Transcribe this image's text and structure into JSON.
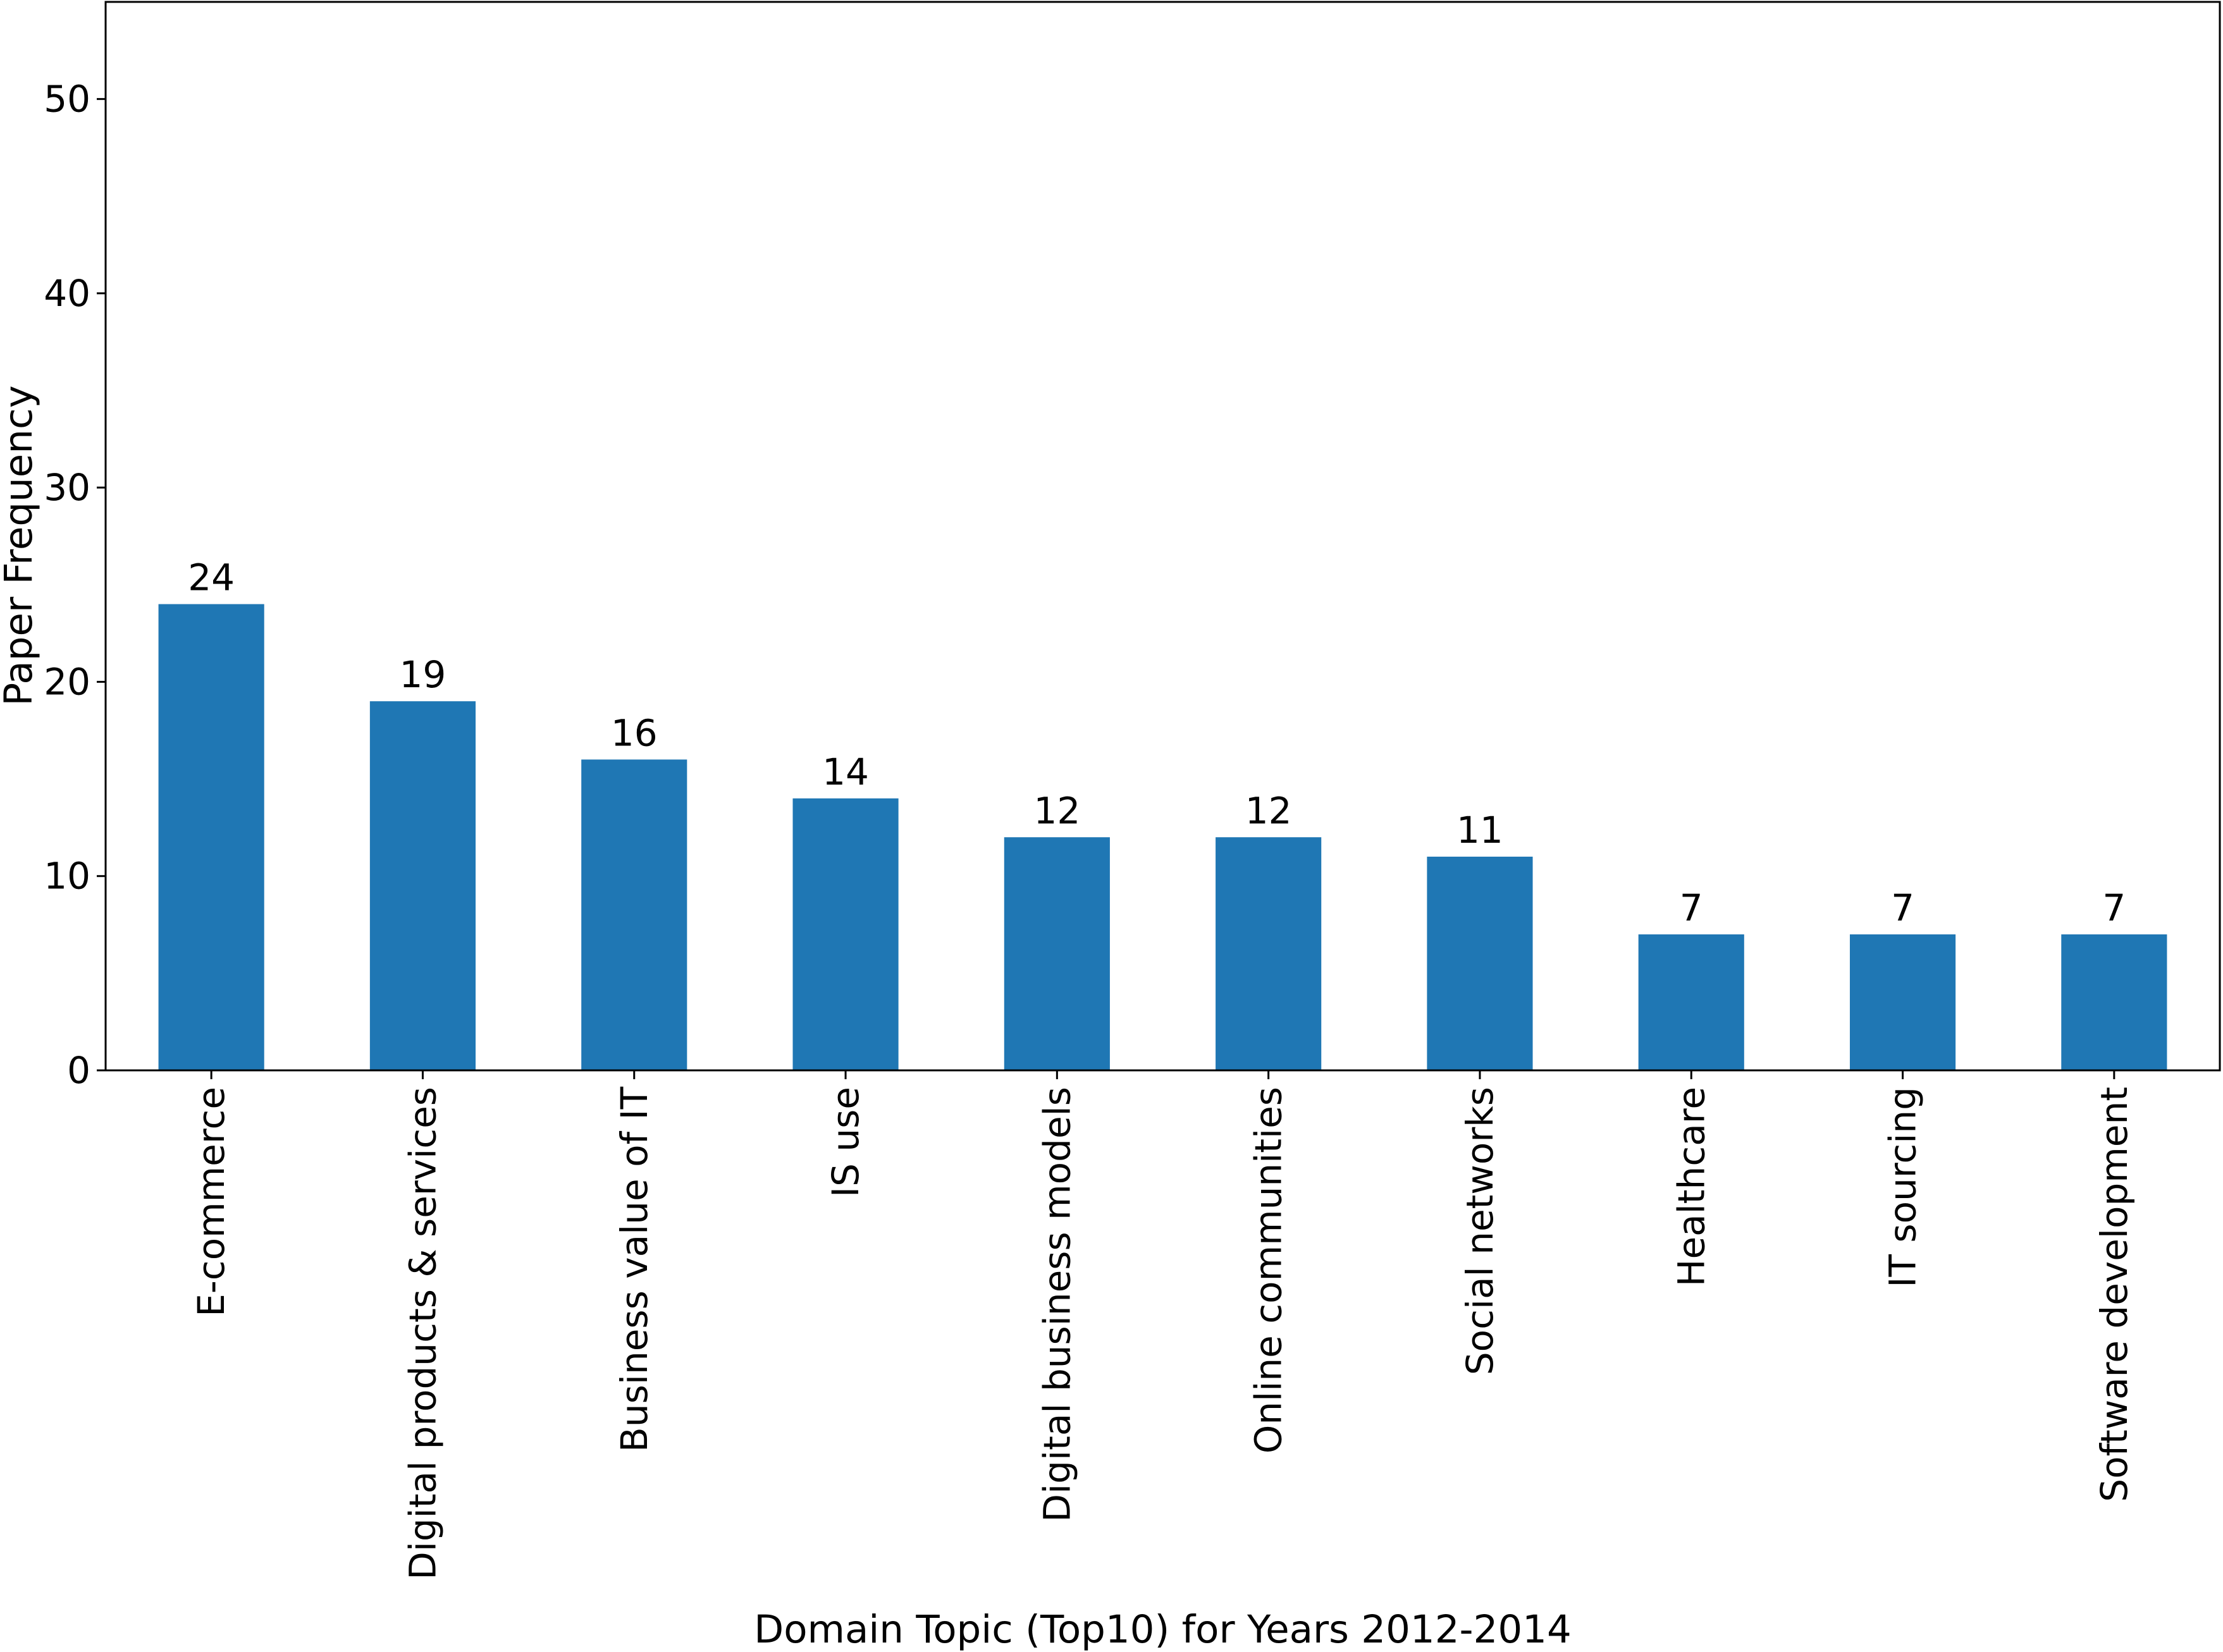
{
  "chart_data": {
    "type": "bar",
    "categories": [
      "E-commerce",
      "Digital products & services",
      "Business value of IT",
      "IS use",
      "Digital business models",
      "Online communities",
      "Social networks",
      "Healthcare",
      "IT sourcing",
      "Software development"
    ],
    "values": [
      24,
      19,
      16,
      14,
      12,
      12,
      11,
      7,
      7,
      7
    ],
    "value_labels": [
      "24",
      "19",
      "16",
      "14",
      "12",
      "12",
      "11",
      "7",
      "7",
      "7"
    ],
    "xlabel": "Domain Topic (Top10) for Years 2012-2014",
    "ylabel": "Paper Frequency",
    "ylim": [
      0,
      55
    ],
    "yticks": [
      0,
      10,
      20,
      30,
      40,
      50
    ],
    "ytick_labels": [
      "0",
      "10",
      "20",
      "30",
      "40",
      "50"
    ],
    "grid": false,
    "bar_color": "#1f77b4"
  }
}
